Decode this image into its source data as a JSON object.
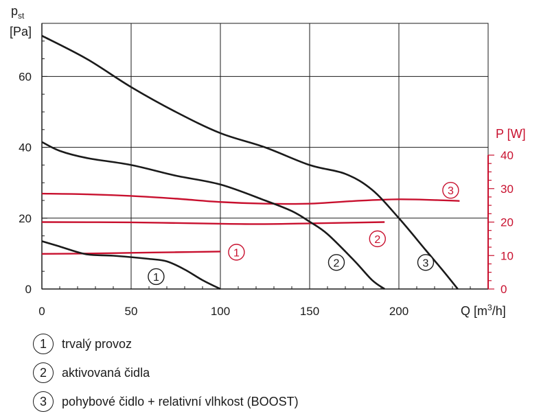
{
  "chart_data": {
    "type": "line",
    "y_left_label_main": "p",
    "y_left_label_sub": "st",
    "y_left_unit": "[Pa]",
    "y_right_label": "P [W]",
    "x_label_main": "Q [m",
    "x_label_sup": "3",
    "x_label_end": "/h]",
    "xlim": [
      0,
      250
    ],
    "ylim_left": [
      0,
      75
    ],
    "ylim_right": [
      0,
      40
    ],
    "x_ticks": [
      "0",
      "50",
      "100",
      "150",
      "200"
    ],
    "y_left_ticks": [
      "0",
      "20",
      "40",
      "60"
    ],
    "y_right_ticks": [
      "0",
      "10",
      "20",
      "30",
      "40"
    ],
    "grid": true,
    "pressure_series": [
      {
        "marker": "1",
        "color": "#1a1a1a",
        "points": [
          [
            0,
            13.5
          ],
          [
            10,
            12
          ],
          [
            25,
            9.8
          ],
          [
            40,
            9.4
          ],
          [
            60,
            8.5
          ],
          [
            70,
            7.8
          ],
          [
            80,
            5.5
          ],
          [
            90,
            2.5
          ],
          [
            100,
            0
          ]
        ]
      },
      {
        "marker": "2",
        "color": "#1a1a1a",
        "points": [
          [
            0,
            41.5
          ],
          [
            10,
            39
          ],
          [
            25,
            37
          ],
          [
            50,
            35
          ],
          [
            75,
            32
          ],
          [
            100,
            29.5
          ],
          [
            125,
            25
          ],
          [
            140,
            22
          ],
          [
            150,
            19
          ],
          [
            160,
            15.5
          ],
          [
            175,
            8
          ],
          [
            185,
            2.5
          ],
          [
            192,
            0
          ]
        ]
      },
      {
        "marker": "3",
        "color": "#1a1a1a",
        "points": [
          [
            0,
            71.5
          ],
          [
            25,
            65
          ],
          [
            50,
            57
          ],
          [
            75,
            50
          ],
          [
            100,
            44
          ],
          [
            125,
            40
          ],
          [
            150,
            35
          ],
          [
            170,
            32.5
          ],
          [
            185,
            28
          ],
          [
            200,
            20
          ],
          [
            215,
            11
          ],
          [
            225,
            5
          ],
          [
            233,
            0
          ]
        ]
      }
    ],
    "power_series": [
      {
        "marker": "1",
        "color": "#c8102e",
        "points": [
          [
            0,
            10.5
          ],
          [
            25,
            10.6
          ],
          [
            50,
            10.8
          ],
          [
            75,
            11
          ],
          [
            100,
            11.2
          ]
        ]
      },
      {
        "marker": "2",
        "color": "#c8102e",
        "points": [
          [
            0,
            20
          ],
          [
            50,
            19.9
          ],
          [
            100,
            19.5
          ],
          [
            125,
            19.4
          ],
          [
            150,
            19.6
          ],
          [
            192,
            20
          ]
        ]
      },
      {
        "marker": "3",
        "color": "#c8102e",
        "points": [
          [
            0,
            28.5
          ],
          [
            25,
            28.3
          ],
          [
            50,
            27.8
          ],
          [
            75,
            27
          ],
          [
            100,
            26
          ],
          [
            125,
            25.5
          ],
          [
            150,
            25.5
          ],
          [
            175,
            26.3
          ],
          [
            200,
            26.8
          ],
          [
            225,
            26.5
          ],
          [
            234,
            26.3
          ]
        ]
      }
    ],
    "markers": [
      {
        "label": "1",
        "color": "#1a1a1a",
        "x": 64,
        "y": 3.5
      },
      {
        "label": "2",
        "color": "#1a1a1a",
        "x": 165,
        "y": 7.5
      },
      {
        "label": "3",
        "color": "#1a1a1a",
        "x": 215,
        "y": 7.5
      },
      {
        "label": "1",
        "color": "#c8102e",
        "x": 109,
        "y_right": 11
      },
      {
        "label": "2",
        "color": "#c8102e",
        "x": 188,
        "y_right": 15
      },
      {
        "label": "3",
        "color": "#c8102e",
        "x": 229,
        "y_right": 29.5
      }
    ]
  },
  "legend": [
    {
      "marker": "1",
      "text": "trvalý provoz"
    },
    {
      "marker": "2",
      "text": "aktivovaná čidla"
    },
    {
      "marker": "3",
      "text": "pohybové čidlo + relativní vlhkost (BOOST)"
    }
  ],
  "colors": {
    "axis": "#1a1a1a",
    "power": "#c8102e",
    "grid": "#1a1a1a"
  }
}
